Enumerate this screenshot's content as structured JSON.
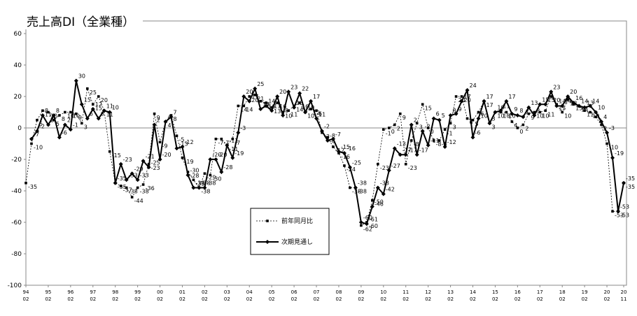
{
  "chart_data": {
    "type": "line",
    "title": "売上高DI（全業種）",
    "ylim": [
      -100,
      60
    ],
    "yticks": [
      60,
      40,
      20,
      0,
      -20,
      -40,
      -60,
      -80,
      -100
    ],
    "xlim": [
      0,
      107
    ],
    "xticks": [
      {
        "value": 0,
        "year": "94",
        "month": "02"
      },
      {
        "value": 4,
        "year": "95",
        "month": "02"
      },
      {
        "value": 8,
        "year": "96",
        "month": "02"
      },
      {
        "value": 12,
        "year": "97",
        "month": "02"
      },
      {
        "value": 16,
        "year": "98",
        "month": "02"
      },
      {
        "value": 20,
        "year": "99",
        "month": "02"
      },
      {
        "value": 24,
        "year": "00",
        "month": "02"
      },
      {
        "value": 28,
        "year": "01",
        "month": "02"
      },
      {
        "value": 32,
        "year": "02",
        "month": "02"
      },
      {
        "value": 36,
        "year": "03",
        "month": "02"
      },
      {
        "value": 40,
        "year": "04",
        "month": "02"
      },
      {
        "value": 44,
        "year": "05",
        "month": "02"
      },
      {
        "value": 48,
        "year": "06",
        "month": "02"
      },
      {
        "value": 52,
        "year": "07",
        "month": "02"
      },
      {
        "value": 56,
        "year": "08",
        "month": "02"
      },
      {
        "value": 60,
        "year": "09",
        "month": "02"
      },
      {
        "value": 64,
        "year": "10",
        "month": "02"
      },
      {
        "value": 68,
        "year": "11",
        "month": "02"
      },
      {
        "value": 72,
        "year": "12",
        "month": "02"
      },
      {
        "value": 76,
        "year": "13",
        "month": "02"
      },
      {
        "value": 80,
        "year": "14",
        "month": "02"
      },
      {
        "value": 84,
        "year": "15",
        "month": "02"
      },
      {
        "value": 88,
        "year": "16",
        "month": "02"
      },
      {
        "value": 92,
        "year": "17",
        "month": "02"
      },
      {
        "value": 96,
        "year": "18",
        "month": "02"
      },
      {
        "value": 100,
        "year": "19",
        "month": "02"
      },
      {
        "value": 104,
        "year": "20",
        "month": "02"
      },
      {
        "value": 107,
        "year": "20",
        "month": "11"
      }
    ],
    "zero_line": true,
    "series": [
      {
        "name": "前年同月比",
        "color": "#000000",
        "style": "dashed",
        "marker": "square",
        "values": [
          -35,
          -10,
          5,
          11,
          10,
          5,
          8,
          10,
          10,
          9,
          3,
          25,
          15,
          20,
          11,
          -15,
          -35,
          -37,
          -38,
          -44,
          -38,
          -36,
          -23,
          9,
          -9,
          4,
          8,
          -5,
          -19,
          -28,
          -33,
          -38,
          -29,
          -30,
          -7,
          -7,
          -11,
          -7,
          14,
          14,
          20,
          21,
          17,
          16,
          13,
          16,
          10,
          11,
          14,
          16,
          10,
          12,
          11,
          -3,
          -6,
          -12,
          -16,
          -24,
          -38,
          -38,
          -62,
          -60,
          -46,
          -23,
          -1,
          0,
          2,
          9,
          -23,
          -8,
          3,
          15,
          0,
          -8,
          -8,
          -1,
          3,
          20,
          20,
          6,
          5,
          10,
          17,
          3,
          10,
          10,
          10,
          4,
          0,
          2,
          9,
          10,
          10,
          11,
          20,
          15,
          10,
          18,
          15,
          14,
          11,
          10,
          7,
          2,
          -10,
          -53,
          -53,
          -35
        ]
      },
      {
        "name": "次期見通し",
        "color": "#000000",
        "style": "solid",
        "marker": "diamond",
        "values": [
          null,
          -7,
          -2,
          8,
          2,
          8,
          -6,
          2,
          -1,
          30,
          15,
          6,
          12,
          6,
          11,
          10,
          -35,
          -23,
          -33,
          -29,
          -33,
          -21,
          -25,
          2,
          -20,
          4,
          7,
          -13,
          -12,
          -30,
          -38,
          -38,
          -38,
          -20,
          -20,
          -28,
          -11,
          -19,
          -3,
          20,
          17,
          25,
          12,
          14,
          11,
          20,
          8,
          23,
          13,
          22,
          10,
          17,
          6,
          -2,
          -8,
          -7,
          -15,
          -16,
          -25,
          -38,
          -60,
          -61,
          -50,
          -38,
          -42,
          -27,
          -13,
          -17,
          -17,
          2,
          -17,
          -2,
          -11,
          6,
          5,
          -12,
          8,
          9,
          17,
          24,
          -6,
          6,
          17,
          3,
          10,
          11,
          17,
          9,
          8,
          7,
          13,
          8,
          15,
          15,
          23,
          14,
          14,
          20,
          16,
          14,
          13,
          14,
          10,
          4,
          -3,
          -19,
          -53,
          -35
        ]
      }
    ]
  }
}
